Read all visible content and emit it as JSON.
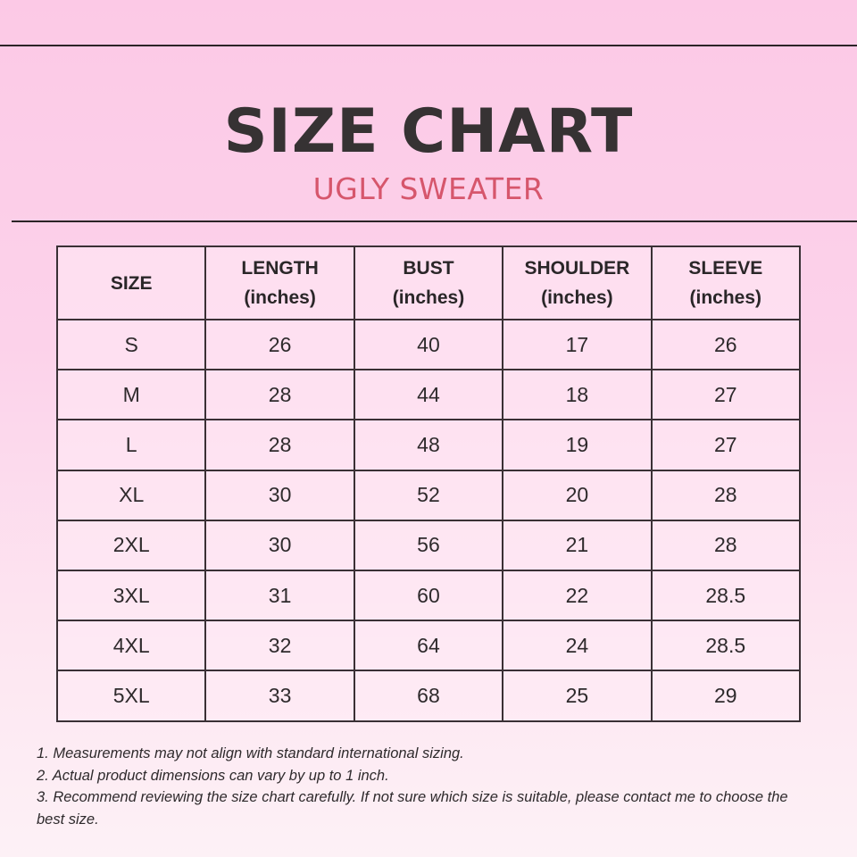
{
  "title": "SIZE CHART",
  "subtitle": "UGLY SWEATER",
  "table": {
    "headers": [
      [
        "SIZE",
        ""
      ],
      [
        "LENGTH",
        "(inches)"
      ],
      [
        "BUST",
        "(inches)"
      ],
      [
        "SHOULDER",
        "(inches)"
      ],
      [
        "SLEEVE",
        "(inches)"
      ]
    ],
    "rows": [
      [
        "S",
        "26",
        "40",
        "17",
        "26"
      ],
      [
        "M",
        "28",
        "44",
        "18",
        "27"
      ],
      [
        "L",
        "28",
        "48",
        "19",
        "27"
      ],
      [
        "XL",
        "30",
        "52",
        "20",
        "28"
      ],
      [
        "2XL",
        "30",
        "56",
        "21",
        "28"
      ],
      [
        "3XL",
        "31",
        "60",
        "22",
        "28.5"
      ],
      [
        "4XL",
        "32",
        "64",
        "24",
        "28.5"
      ],
      [
        "5XL",
        "33",
        "68",
        "25",
        "29"
      ]
    ]
  },
  "notes": [
    "1. Measurements may not align with standard international sizing.",
    "2. Actual product dimensions can vary by up to 1 inch.",
    "3. Recommend reviewing the size chart carefully. If not sure which size is suitable, please contact me to choose the best size."
  ],
  "colors": {
    "title": "#363233",
    "subtitle": "#d6566c",
    "background_top": "#fcc9e6",
    "background_bottom": "#fdf1f6"
  }
}
